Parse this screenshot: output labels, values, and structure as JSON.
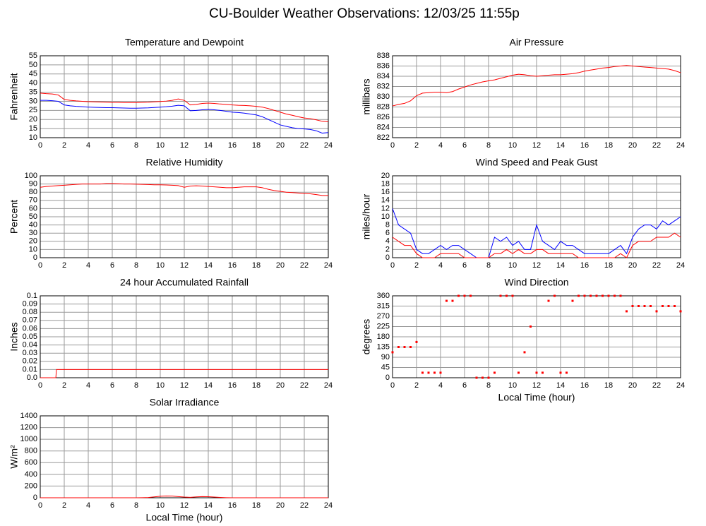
{
  "title": "CU-Boulder Weather Observations: 12/03/25 11:55p",
  "chart_data": [
    {
      "type": "line",
      "title": "Temperature and Dewpoint",
      "ylabel": "Fahrenheit",
      "x": [
        0,
        0.5,
        1,
        1.5,
        2,
        2.5,
        3,
        3.5,
        4,
        4.5,
        5,
        5.5,
        6,
        6.5,
        7,
        7.5,
        8,
        8.5,
        9,
        9.5,
        10,
        10.5,
        11,
        11.5,
        12,
        12.5,
        13,
        13.5,
        14,
        14.5,
        15,
        15.5,
        16,
        16.5,
        17,
        17.5,
        18,
        18.5,
        19,
        19.5,
        20,
        20.5,
        21,
        21.5,
        22,
        22.5,
        23,
        23.5,
        24
      ],
      "series": [
        {
          "color": "#ff0000",
          "values": [
            34.5,
            34.2,
            34,
            33.5,
            31,
            30.5,
            30.2,
            30,
            29.8,
            29.7,
            29.6,
            29.5,
            29.4,
            29.4,
            29.3,
            29.3,
            29.3,
            29.4,
            29.5,
            29.7,
            29.9,
            30.1,
            30.5,
            31.3,
            30.5,
            28,
            28.3,
            28.8,
            29,
            28.8,
            28.5,
            28.3,
            28,
            27.8,
            27.7,
            27.5,
            27.2,
            26.8,
            26,
            25,
            24,
            23,
            22.3,
            21.5,
            20.8,
            20.5,
            19.8,
            19,
            18.8
          ]
        },
        {
          "color": "#0000ff",
          "values": [
            30.5,
            30.5,
            30.3,
            30,
            28,
            27.5,
            27.2,
            27,
            26.8,
            26.7,
            26.6,
            26.5,
            26.5,
            26.4,
            26.3,
            26.2,
            26.2,
            26.3,
            26.4,
            26.6,
            26.8,
            27,
            27.3,
            27.8,
            27.5,
            24.8,
            25,
            25.3,
            25.5,
            25.3,
            25,
            24.5,
            24,
            23.8,
            23.5,
            23,
            22.5,
            21.5,
            20,
            18.5,
            17,
            16.2,
            15.5,
            15,
            14.8,
            14.5,
            13.8,
            12.5,
            12.8
          ]
        }
      ],
      "xlim": [
        0,
        24
      ],
      "xticks": [
        0,
        2,
        4,
        6,
        8,
        10,
        12,
        14,
        16,
        18,
        20,
        22,
        24
      ],
      "ylim": [
        10,
        55
      ],
      "yticks": [
        10,
        15,
        20,
        25,
        30,
        35,
        40,
        45,
        50,
        55
      ],
      "grid": true
    },
    {
      "type": "line",
      "title": "Air Pressure",
      "ylabel": "millibars",
      "x": [
        0,
        0.5,
        1,
        1.5,
        2,
        2.5,
        3,
        3.5,
        4,
        4.5,
        5,
        5.5,
        6,
        6.5,
        7,
        7.5,
        8,
        8.5,
        9,
        9.5,
        10,
        10.5,
        11,
        11.5,
        12,
        12.5,
        13,
        13.5,
        14,
        14.5,
        15,
        15.5,
        16,
        16.5,
        17,
        17.5,
        18,
        18.5,
        19,
        19.5,
        20,
        20.5,
        21,
        21.5,
        22,
        22.5,
        23,
        23.5,
        24
      ],
      "series": [
        {
          "color": "#ff0000",
          "values": [
            828.2,
            828.5,
            828.7,
            829.2,
            830.2,
            830.7,
            830.8,
            830.9,
            830.9,
            830.8,
            831,
            831.5,
            831.9,
            832.3,
            832.6,
            832.9,
            833.1,
            833.3,
            833.6,
            833.9,
            834.2,
            834.4,
            834.3,
            834.1,
            834,
            834.1,
            834.2,
            834.3,
            834.3,
            834.4,
            834.5,
            834.7,
            835,
            835.2,
            835.4,
            835.6,
            835.7,
            835.9,
            836,
            836.1,
            836,
            835.9,
            835.8,
            835.7,
            835.6,
            835.5,
            835.4,
            835.1,
            834.7
          ]
        }
      ],
      "xlim": [
        0,
        24
      ],
      "xticks": [
        0,
        2,
        4,
        6,
        8,
        10,
        12,
        14,
        16,
        18,
        20,
        22,
        24
      ],
      "ylim": [
        822,
        838
      ],
      "yticks": [
        822,
        824,
        826,
        828,
        830,
        832,
        834,
        836,
        838
      ],
      "grid": true
    },
    {
      "type": "line",
      "title": "Relative Humidity",
      "ylabel": "Percent",
      "x": [
        0,
        0.5,
        1,
        1.5,
        2,
        2.5,
        3,
        3.5,
        4,
        4.5,
        5,
        5.5,
        6,
        6.5,
        7,
        7.5,
        8,
        8.5,
        9,
        9.5,
        10,
        10.5,
        11,
        11.5,
        12,
        12.5,
        13,
        13.5,
        14,
        14.5,
        15,
        15.5,
        16,
        16.5,
        17,
        17.5,
        18,
        18.5,
        19,
        19.5,
        20,
        20.5,
        21,
        21.5,
        22,
        22.5,
        23,
        23.5,
        24
      ],
      "series": [
        {
          "color": "#ff0000",
          "values": [
            86,
            87,
            87.5,
            88,
            88.5,
            89,
            89.5,
            90,
            90,
            90,
            90,
            90.5,
            90.5,
            90.3,
            90,
            90,
            89.8,
            89.5,
            89.3,
            89,
            89,
            88.8,
            88.5,
            88,
            86,
            87.5,
            87.8,
            87.5,
            87,
            86.5,
            86,
            85.5,
            85.5,
            86,
            86.5,
            86.5,
            86.5,
            85.5,
            83.5,
            82,
            81,
            80,
            79.5,
            79,
            78.5,
            78,
            77,
            76,
            76
          ]
        }
      ],
      "xlim": [
        0,
        24
      ],
      "xticks": [
        0,
        2,
        4,
        6,
        8,
        10,
        12,
        14,
        16,
        18,
        20,
        22,
        24
      ],
      "ylim": [
        0,
        100
      ],
      "yticks": [
        0,
        10,
        20,
        30,
        40,
        50,
        60,
        70,
        80,
        90,
        100
      ],
      "grid": true
    },
    {
      "type": "line",
      "title": "Wind Speed and Peak Gust",
      "ylabel": "miles/hour",
      "x": [
        0,
        0.5,
        1,
        1.5,
        2,
        2.5,
        3,
        3.5,
        4,
        4.5,
        5,
        5.5,
        6,
        6.5,
        7,
        7.5,
        8,
        8.5,
        9,
        9.5,
        10,
        10.5,
        11,
        11.5,
        12,
        12.5,
        13,
        13.5,
        14,
        14.5,
        15,
        15.5,
        16,
        16.5,
        17,
        17.5,
        18,
        18.5,
        19,
        19.5,
        20,
        20.5,
        21,
        21.5,
        22,
        22.5,
        23,
        23.5,
        24
      ],
      "series": [
        {
          "color": "#0000ff",
          "values": [
            12,
            8,
            7,
            6,
            2,
            1,
            1,
            2,
            3,
            2,
            3,
            3,
            2,
            1,
            0,
            0,
            0,
            5,
            4,
            5,
            3,
            4,
            2,
            2,
            8,
            4,
            3,
            2,
            4,
            3,
            3,
            2,
            1,
            1,
            1,
            1,
            1,
            2,
            3,
            1,
            5,
            7,
            8,
            8,
            7,
            9,
            8,
            9,
            10
          ]
        },
        {
          "color": "#ff0000",
          "values": [
            5,
            4,
            3,
            3,
            1,
            0,
            0,
            0,
            1,
            1,
            1,
            1,
            0,
            0,
            0,
            0,
            0,
            1,
            1,
            2,
            1,
            2,
            1,
            1,
            2,
            2,
            1,
            1,
            1,
            1,
            1,
            0,
            0,
            0,
            0,
            0,
            0,
            0,
            1,
            0,
            3,
            4,
            4,
            4,
            5,
            5,
            5,
            6,
            5
          ]
        }
      ],
      "xlim": [
        0,
        24
      ],
      "xticks": [
        0,
        2,
        4,
        6,
        8,
        10,
        12,
        14,
        16,
        18,
        20,
        22,
        24
      ],
      "ylim": [
        0,
        20
      ],
      "yticks": [
        0,
        2,
        4,
        6,
        8,
        10,
        12,
        14,
        16,
        18,
        20
      ],
      "grid": true
    },
    {
      "type": "line",
      "title": "24 hour Accumulated Rainfall",
      "ylabel": "Inches",
      "x": [
        0,
        1.3,
        1.35,
        24
      ],
      "series": [
        {
          "color": "#ff0000",
          "values": [
            0,
            0,
            0.01,
            0.01
          ]
        }
      ],
      "xlim": [
        0,
        24
      ],
      "xticks": [
        0,
        2,
        4,
        6,
        8,
        10,
        12,
        14,
        16,
        18,
        20,
        22,
        24
      ],
      "ylim": [
        0,
        0.1
      ],
      "yticks": [
        {
          "value": 0,
          "label": "0.0"
        },
        0.01,
        0.02,
        0.03,
        0.04,
        0.05,
        0.06,
        0.07,
        0.08,
        0.09,
        0.1
      ],
      "grid": true
    },
    {
      "type": "scatter",
      "title": "Wind Direction",
      "ylabel": "degrees",
      "xlabel": "Local Time (hour)",
      "x": [
        0,
        0.5,
        1,
        1.5,
        2,
        2.5,
        3,
        3.5,
        4,
        4.5,
        5,
        5.5,
        6,
        6.5,
        7,
        7.5,
        8,
        8.5,
        9,
        9.5,
        10,
        10.5,
        11,
        11.5,
        12,
        12.5,
        13,
        13.5,
        14,
        14.5,
        15,
        15.5,
        16,
        16.5,
        17,
        17.5,
        18,
        18.5,
        19,
        19.5,
        20,
        20.5,
        21,
        21.5,
        22,
        22.5,
        23,
        23.5,
        24
      ],
      "series": [
        {
          "color": "#ff0000",
          "values": [
            112,
            135,
            135,
            135,
            157,
            22,
            22,
            22,
            22,
            338,
            338,
            360,
            360,
            360,
            0,
            0,
            0,
            22,
            360,
            360,
            360,
            22,
            112,
            225,
            22,
            22,
            338,
            360,
            22,
            22,
            338,
            360,
            360,
            360,
            360,
            360,
            360,
            360,
            360,
            292,
            315,
            315,
            315,
            315,
            292,
            315,
            315,
            315,
            292
          ]
        }
      ],
      "xlim": [
        0,
        24
      ],
      "xticks": [
        0,
        2,
        4,
        6,
        8,
        10,
        12,
        14,
        16,
        18,
        20,
        22,
        24
      ],
      "ylim": [
        0,
        360
      ],
      "yticks": [
        0,
        45,
        90,
        135,
        180,
        225,
        270,
        315,
        360
      ],
      "grid": true
    },
    {
      "type": "line",
      "title": "Solar Irradiance",
      "ylabel": "W/m²",
      "xlabel": "Local Time (hour)",
      "x": [
        0,
        0.5,
        1,
        1.5,
        2,
        2.5,
        3,
        3.5,
        4,
        4.5,
        5,
        5.5,
        6,
        6.5,
        7,
        7.5,
        8,
        8.5,
        9,
        9.5,
        10,
        10.5,
        11,
        11.5,
        12,
        12.5,
        13,
        13.5,
        14,
        14.5,
        15,
        15.5,
        16,
        16.5,
        17,
        17.5,
        18,
        18.5,
        19,
        19.5,
        20,
        20.5,
        21,
        21.5,
        22,
        22.5,
        23,
        23.5,
        24
      ],
      "series": [
        {
          "color": "#ff0000",
          "values": [
            0,
            0,
            0,
            0,
            0,
            0,
            0,
            0,
            0,
            0,
            0,
            0,
            0,
            0,
            0,
            0,
            0,
            2,
            5,
            15,
            25,
            30,
            28,
            20,
            12,
            8,
            15,
            20,
            18,
            12,
            6,
            2,
            0,
            0,
            0,
            0,
            0,
            0,
            0,
            0,
            0,
            0,
            0,
            0,
            0,
            0,
            0,
            0,
            0
          ]
        }
      ],
      "xlim": [
        0,
        24
      ],
      "xticks": [
        0,
        2,
        4,
        6,
        8,
        10,
        12,
        14,
        16,
        18,
        20,
        22,
        24
      ],
      "ylim": [
        0,
        1400
      ],
      "yticks": [
        0,
        200,
        400,
        600,
        800,
        1000,
        1200,
        1400
      ],
      "grid": true
    }
  ]
}
